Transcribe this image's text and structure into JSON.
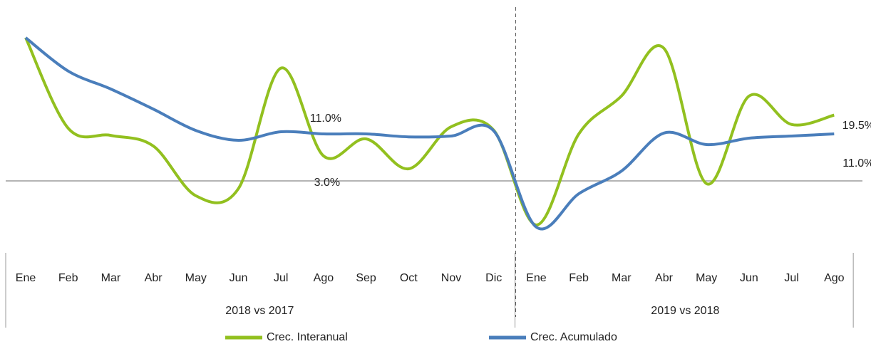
{
  "chart_data": {
    "type": "line",
    "categories": [
      "Ene",
      "Feb",
      "Mar",
      "Abr",
      "May",
      "Jun",
      "Jul",
      "Ago",
      "Sep",
      "Oct",
      "Nov",
      "Dic",
      "Ene",
      "Feb",
      "Mar",
      "Abr",
      "May",
      "Jun",
      "Jul",
      "Ago"
    ],
    "groups": [
      {
        "label": "2018 vs 2017",
        "count": 12
      },
      {
        "label": "2019 vs 2018",
        "count": 8
      }
    ],
    "series": [
      {
        "name": "Crec. Interanual",
        "color": "#92c01f",
        "axis": "y2",
        "values": [
          50.8,
          14.2,
          11.3,
          7.0,
          -13.1,
          -10.2,
          38.5,
          3.0,
          9.9,
          -2.2,
          14.8,
          13.4,
          -24.9,
          11.9,
          27.2,
          46.5,
          -8.2,
          27.2,
          15.7,
          19.5
        ],
        "value_labels": [
          null,
          null,
          null,
          null,
          null,
          null,
          null,
          "3.0%",
          null,
          null,
          null,
          null,
          null,
          null,
          null,
          null,
          null,
          null,
          null,
          "19.5%"
        ]
      },
      {
        "name": "Crec. Acumulado",
        "color": "#4a7ebb",
        "values": [
          33.5,
          25.7,
          21.5,
          16.8,
          11.8,
          9.5,
          11.5,
          11.0,
          11.0,
          10.3,
          10.5,
          11.7,
          -10.8,
          -3.0,
          2.3,
          11.2,
          8.5,
          10.0,
          10.5,
          11.0
        ],
        "value_labels": [
          null,
          null,
          null,
          null,
          null,
          null,
          null,
          "11.0%",
          null,
          null,
          null,
          null,
          null,
          null,
          null,
          null,
          null,
          null,
          null,
          "11.0%"
        ]
      }
    ],
    "ylim": [
      -15,
      40
    ],
    "y2lim": [
      -33,
      62
    ],
    "legend": "bottom"
  }
}
